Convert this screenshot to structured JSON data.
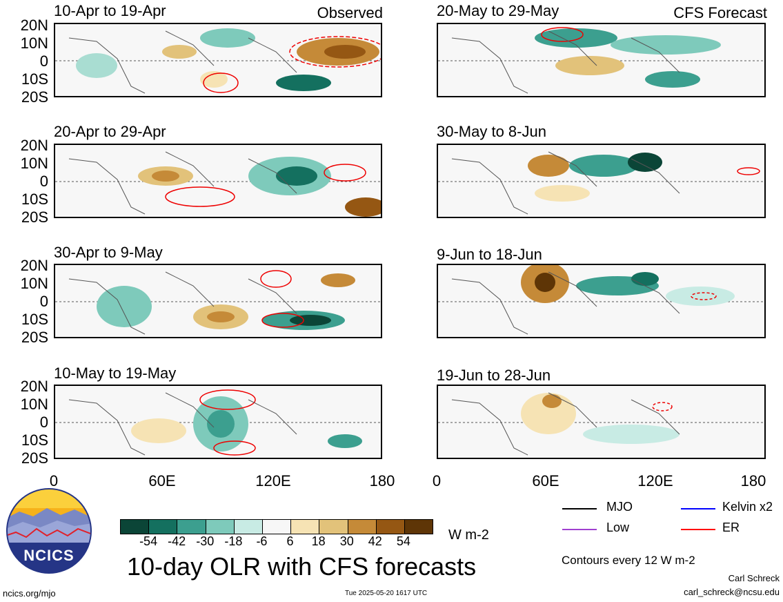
{
  "headers": {
    "observed": "Observed",
    "forecast": "CFS Forecast"
  },
  "panels": [
    {
      "title": "10-Apr to 19-Apr"
    },
    {
      "title": "20-Apr to 29-Apr"
    },
    {
      "title": "30-Apr to 9-May"
    },
    {
      "title": "10-May to 19-May"
    },
    {
      "title": "20-May to 29-May"
    },
    {
      "title": "30-May to 8-Jun"
    },
    {
      "title": "9-Jun to 18-Jun"
    },
    {
      "title": "19-Jun to 28-Jun"
    }
  ],
  "lat_ticks": [
    "20N",
    "10N",
    "0",
    "10S",
    "20S"
  ],
  "lon_ticks": [
    "0",
    "60E",
    "120E",
    "180"
  ],
  "colorbar": {
    "colors": [
      "#0b4537",
      "#14705f",
      "#3c9f8f",
      "#7ecabb",
      "#c8ebe4",
      "#f7f7f7",
      "#f6e3b4",
      "#e2c27a",
      "#c58a38",
      "#955713",
      "#5e3506"
    ],
    "labels": [
      "-54",
      "-42",
      "-30",
      "-18",
      "-6",
      "6",
      "18",
      "30",
      "42",
      "54"
    ],
    "units": "W m-2"
  },
  "legend": {
    "items": [
      {
        "label": "MJO",
        "color": "#000000"
      },
      {
        "label": "Kelvin x2",
        "color": "#0000ff"
      },
      {
        "label": "Low",
        "color": "#a040d0"
      },
      {
        "label": "ER",
        "color": "#ff0000"
      }
    ],
    "contours_note": "Contours every 12 W m-2"
  },
  "logo": {
    "text": "NCICS"
  },
  "main_title": "10-day OLR with CFS forecasts",
  "footer": {
    "url": "ncics.org/mjo",
    "timestamp": "Tue 2025-05-20 1617 UTC",
    "author": "Carl Schreck",
    "email": "carl_schreck@ncsu.edu"
  }
}
